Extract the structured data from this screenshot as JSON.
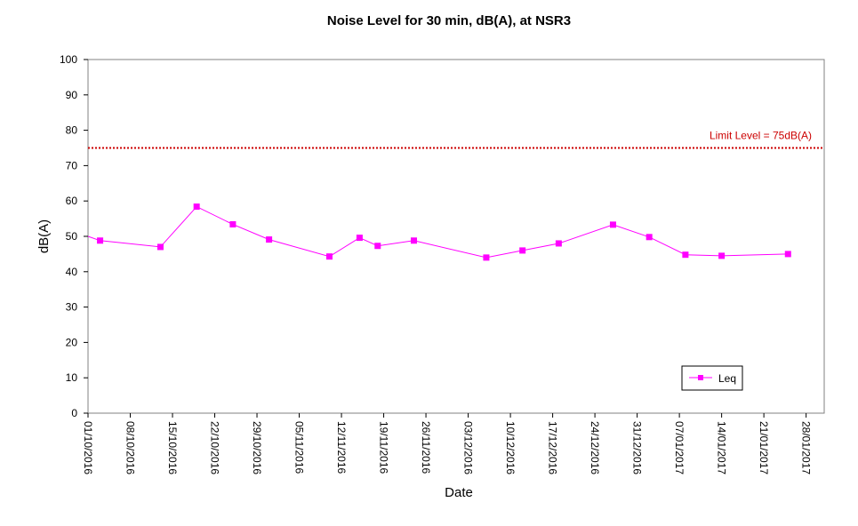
{
  "chart_data": {
    "type": "line",
    "title": "Noise Level for 30 min, dB(A), at NSR3",
    "xlabel": "Date",
    "ylabel": "dB(A)",
    "ylim": [
      0,
      100
    ],
    "yticks": [
      0,
      10,
      20,
      30,
      40,
      50,
      60,
      70,
      80,
      90,
      100
    ],
    "xlim": [
      "2016-10-01",
      "2017-01-31"
    ],
    "xticks": [
      "01/10/2016",
      "08/10/2016",
      "15/10/2016",
      "22/10/2016",
      "29/10/2016",
      "05/11/2016",
      "12/11/2016",
      "19/11/2016",
      "26/11/2016",
      "03/12/2016",
      "10/12/2016",
      "17/12/2016",
      "24/12/2016",
      "31/12/2016",
      "07/01/2017",
      "14/01/2017",
      "21/01/2017",
      "28/01/2017"
    ],
    "grid": false,
    "legend_position": "bottom-right",
    "series": [
      {
        "name": "Leq",
        "color": "#ff00ff",
        "marker": "square",
        "x": [
          "2016-10-01",
          "2016-10-03",
          "2016-10-13",
          "2016-10-19",
          "2016-10-25",
          "2016-10-31",
          "2016-11-10",
          "2016-11-15",
          "2016-11-18",
          "2016-11-24",
          "2016-12-06",
          "2016-12-12",
          "2016-12-18",
          "2016-12-27",
          "2017-01-02",
          "2017-01-08",
          "2017-01-14",
          "2017-01-25"
        ],
        "values": [
          50,
          48.8,
          47,
          58.4,
          53.4,
          49.1,
          44.3,
          49.6,
          47.3,
          48.8,
          44,
          46,
          48,
          53.3,
          49.8,
          44.8,
          44.5,
          45
        ]
      },
      {
        "name": "Limit Level = 75dB(A)",
        "color": "#cc0000",
        "style": "dotted",
        "value": 75
      }
    ]
  }
}
